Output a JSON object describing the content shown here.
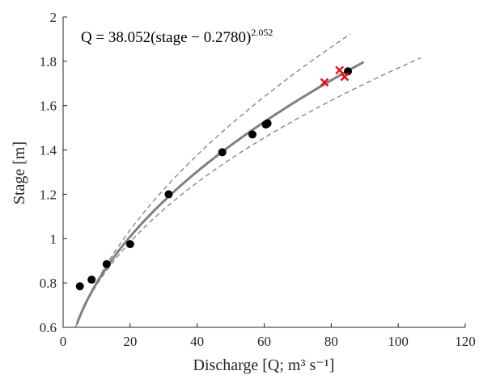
{
  "chart_data": {
    "type": "scatter",
    "xlabel": "Discharge [Q; m³ s⁻¹]",
    "ylabel": "Stage [m]",
    "xlim": [
      0,
      120
    ],
    "ylim": [
      0.6,
      2
    ],
    "xticks": [
      "0",
      "20",
      "40",
      "60",
      "80",
      "100",
      "120"
    ],
    "yticks": [
      "0.6",
      "0.8",
      "1",
      "1.2",
      "1.4",
      "1.6",
      "1.8",
      "2"
    ],
    "grid": false,
    "annotation": {
      "main": "Q = 38.052(stage − 0.2780)",
      "exponent": "2.052"
    },
    "fit": {
      "coefficient": 38.052,
      "offset": 0.278,
      "exponent": 2.052,
      "q_max": 90,
      "color": "#808080"
    },
    "bounds": {
      "upper_q_max": 86,
      "lower_q_max": 107,
      "color": "#808080",
      "dashed": true
    },
    "series": [
      {
        "marker": "circle",
        "color": "#000000",
        "points": [
          [
            5,
            0.785
          ],
          [
            8.5,
            0.815
          ],
          [
            13,
            0.885
          ],
          [
            20,
            0.975
          ],
          [
            31.5,
            1.2
          ],
          [
            47.5,
            1.39
          ],
          [
            56.5,
            1.47
          ],
          [
            60.5,
            1.515
          ],
          [
            61,
            1.52
          ],
          [
            85,
            1.755
          ]
        ]
      },
      {
        "marker": "cross",
        "color": "#e8141c",
        "points": [
          [
            78,
            1.705
          ],
          [
            82.5,
            1.76
          ],
          [
            84,
            1.73
          ]
        ]
      }
    ]
  }
}
